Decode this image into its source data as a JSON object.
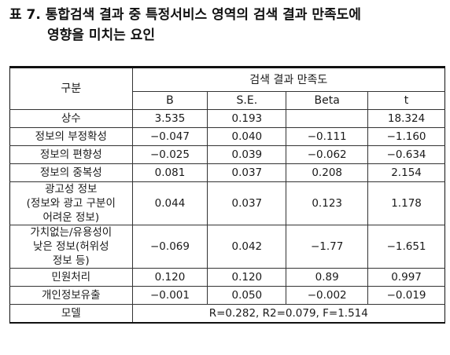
{
  "title": {
    "line1": "표 7. 통합검색 결과 중 특정서비스 영역의 검색 결과 만족도에",
    "line2": "영향을 미치는 요인"
  },
  "table": {
    "group_header": "구분",
    "span_header": "검색 결과 만족도",
    "columns": [
      "B",
      "S.E.",
      "Beta",
      "t"
    ],
    "rows": [
      {
        "label": "상수",
        "B": "3.535",
        "SE": "0.193",
        "Beta": "",
        "t": "18.324"
      },
      {
        "label": "정보의 부정확성",
        "B": "−0.047",
        "SE": "0.040",
        "Beta": "−0.111",
        "t": "−1.160"
      },
      {
        "label": "정보의 편향성",
        "B": "−0.025",
        "SE": "0.039",
        "Beta": "−0.062",
        "t": "−0.634"
      },
      {
        "label": "정보의 중복성",
        "B": "0.081",
        "SE": "0.037",
        "Beta": "0.208",
        "t": "2.154"
      },
      {
        "label": "광고성 정보\n(정보와 광고 구분이\n어려운 정보)",
        "B": "0.044",
        "SE": "0.037",
        "Beta": "0.123",
        "t": "1.178"
      },
      {
        "label": "가치없는/유용성이\n낮은 정보(허위성\n정보 등)",
        "B": "−0.069",
        "SE": "0.042",
        "Beta": "−1.77",
        "t": "−1.651"
      },
      {
        "label": "민원처리",
        "B": "0.120",
        "SE": "0.120",
        "Beta": "0.89",
        "t": "0.997"
      },
      {
        "label": "개인정보유출",
        "B": "−0.001",
        "SE": "0.050",
        "Beta": "−0.002",
        "t": "−0.019"
      }
    ],
    "model_label": "모델",
    "model_value": "R=0.282,  R2=0.079,  F=1.514"
  }
}
